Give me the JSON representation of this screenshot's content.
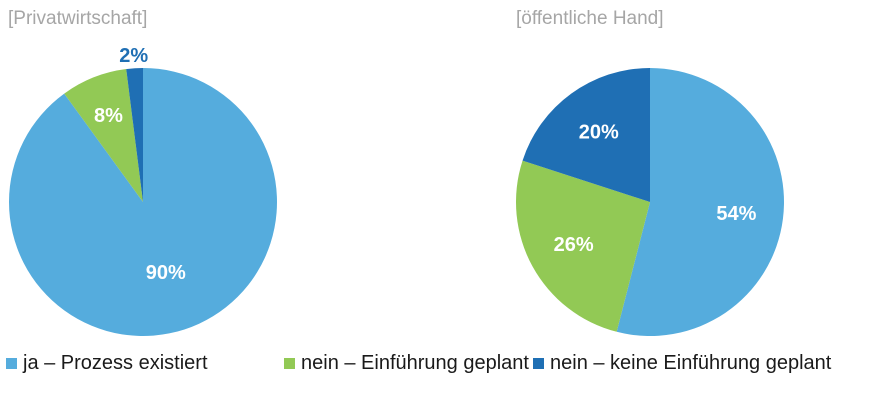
{
  "chart_data": [
    {
      "type": "pie",
      "title": "[Privatwirtschaft]",
      "categories": [
        "ja – Prozess existiert",
        "nein – Einführung geplant",
        "nein – keine Einführung geplant"
      ],
      "values": [
        90,
        8,
        2
      ],
      "labels": [
        "90%",
        "8%",
        "2%"
      ]
    },
    {
      "type": "pie",
      "title": "[öffentliche Hand]",
      "categories": [
        "ja – Prozess existiert",
        "nein – Einführung geplant",
        "nein – keine Einführung geplant"
      ],
      "values": [
        54,
        26,
        20
      ],
      "labels": [
        "54%",
        "26%",
        "20%"
      ]
    }
  ],
  "legend": [
    {
      "label": "ja – Prozess existiert",
      "color": "#55acdd"
    },
    {
      "label": "nein – Einführung geplant",
      "color": "#92c955"
    },
    {
      "label": "nein – keine Einführung geplant",
      "color": "#1f6fb4"
    }
  ],
  "colors": [
    "#55acdd",
    "#92c955",
    "#1f6fb4"
  ]
}
